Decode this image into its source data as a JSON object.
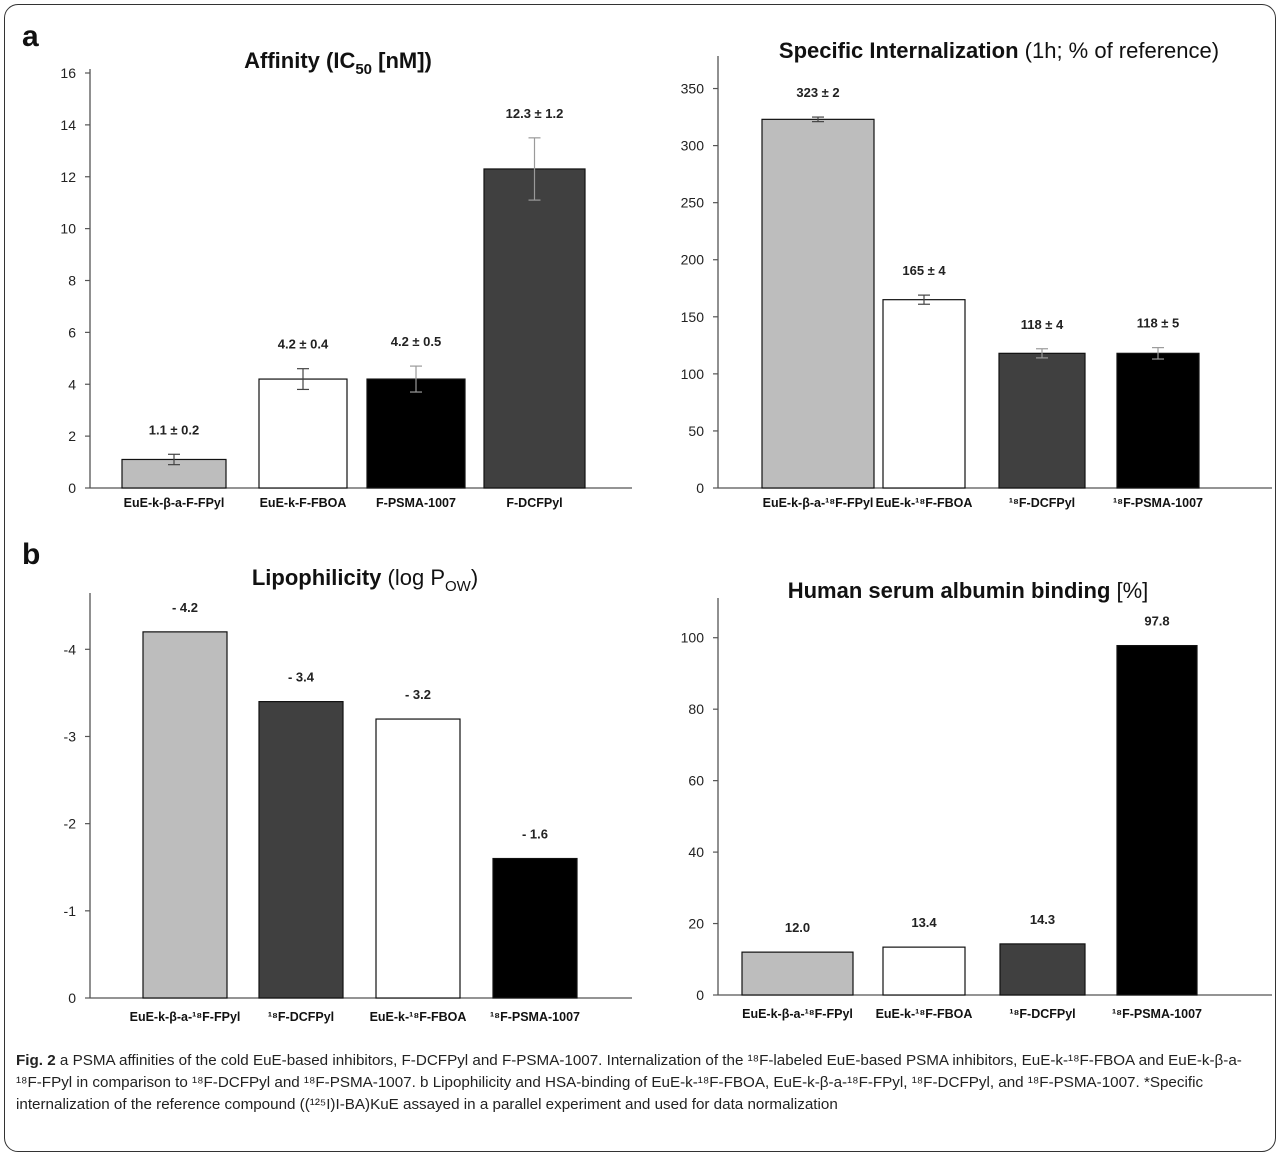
{
  "panels": {
    "a": "a",
    "b": "b"
  },
  "chart_data": [
    {
      "type": "bar",
      "title": "Affinity (IC50 [nM])",
      "categories": [
        "EuE-k-β-a-F-FPyl",
        "EuE-k-F-FBOA",
        "F-PSMA-1007",
        "F-DCFPyl"
      ],
      "values": [
        1.1,
        4.2,
        4.2,
        12.3
      ],
      "errors": [
        0.2,
        0.4,
        0.5,
        1.2
      ],
      "value_labels": [
        "1.1 ± 0.2",
        "4.2 ± 0.4",
        "4.2 ± 0.5",
        "12.3 ± 1.2"
      ],
      "colors": [
        "#bdbdbd",
        "#ffffff",
        "#000000",
        "#404040"
      ],
      "ylim": [
        0,
        16
      ],
      "yticks": [
        "0",
        "2",
        "4",
        "6",
        "8",
        "10",
        "12",
        "14",
        "16"
      ],
      "grid": false
    },
    {
      "type": "bar",
      "title": "Specific Internalization (1h; % of reference)",
      "categories": [
        "EuE-k-β-a-¹⁸F-FPyl",
        "EuE-k-¹⁸F-FBOA",
        "¹⁸F-DCFPyl",
        "¹⁸F-PSMA-1007"
      ],
      "values": [
        323,
        165,
        118,
        118
      ],
      "errors": [
        2,
        4,
        4,
        5
      ],
      "value_labels": [
        "323 ± 2",
        "165 ± 4",
        "118 ± 4",
        "118 ± 5"
      ],
      "colors": [
        "#bdbdbd",
        "#ffffff",
        "#404040",
        "#000000"
      ],
      "ylim": [
        0,
        375
      ],
      "yticks": [
        "0",
        "50",
        "100",
        "150",
        "200",
        "250",
        "300",
        "350"
      ],
      "grid": false
    },
    {
      "type": "bar",
      "title": "Lipophilicity (log POW)",
      "categories": [
        "EuE-k-β-a-¹⁸F-FPyl",
        "¹⁸F-DCFPyl",
        "EuE-k-¹⁸F-FBOA",
        "¹⁸F-PSMA-1007"
      ],
      "values": [
        -4.2,
        -3.4,
        -3.2,
        -1.6
      ],
      "value_labels": [
        "- 4.2",
        "- 3.4",
        "- 3.2",
        "- 1.6"
      ],
      "colors": [
        "#bdbdbd",
        "#404040",
        "#ffffff",
        "#000000"
      ],
      "ylim": [
        0,
        -4.6
      ],
      "yticks": [
        "0",
        "-1",
        "-2",
        "-3",
        "-4"
      ],
      "grid": false
    },
    {
      "type": "bar",
      "title": "Human serum albumin binding [%]",
      "categories": [
        "EuE-k-β-a-¹⁸F-FPyl",
        "EuE-k-¹⁸F-FBOA",
        "¹⁸F-DCFPyl",
        "¹⁸F-PSMA-1007"
      ],
      "values": [
        12.0,
        13.4,
        14.3,
        97.8
      ],
      "value_labels": [
        "12.0",
        "13.4",
        "14.3",
        "97.8"
      ],
      "colors": [
        "#bdbdbd",
        "#ffffff",
        "#404040",
        "#000000"
      ],
      "ylim": [
        0,
        110
      ],
      "yticks": [
        "0",
        "20",
        "40",
        "60",
        "80",
        "100"
      ],
      "grid": false
    }
  ],
  "caption": {
    "label": "Fig. 2",
    "text": "a PSMA affinities of the cold EuE-based inhibitors, F-DCFPyl and F-PSMA-1007. Internalization of the ¹⁸F-labeled EuE-based PSMA inhibitors, EuE-k-¹⁸F-FBOA and EuE-k-β-a-¹⁸F-FPyl in comparison to ¹⁸F-DCFPyl and ¹⁸F-PSMA-1007. b Lipophilicity and HSA-binding of EuE-k-¹⁸F-FBOA, EuE-k-β-a-¹⁸F-FPyl, ¹⁸F-DCFPyl, and ¹⁸F-PSMA-1007. *Specific internalization of the reference compound ((¹²⁵I)I-BA)KuE assayed in a parallel experiment and used for data normalization"
  }
}
